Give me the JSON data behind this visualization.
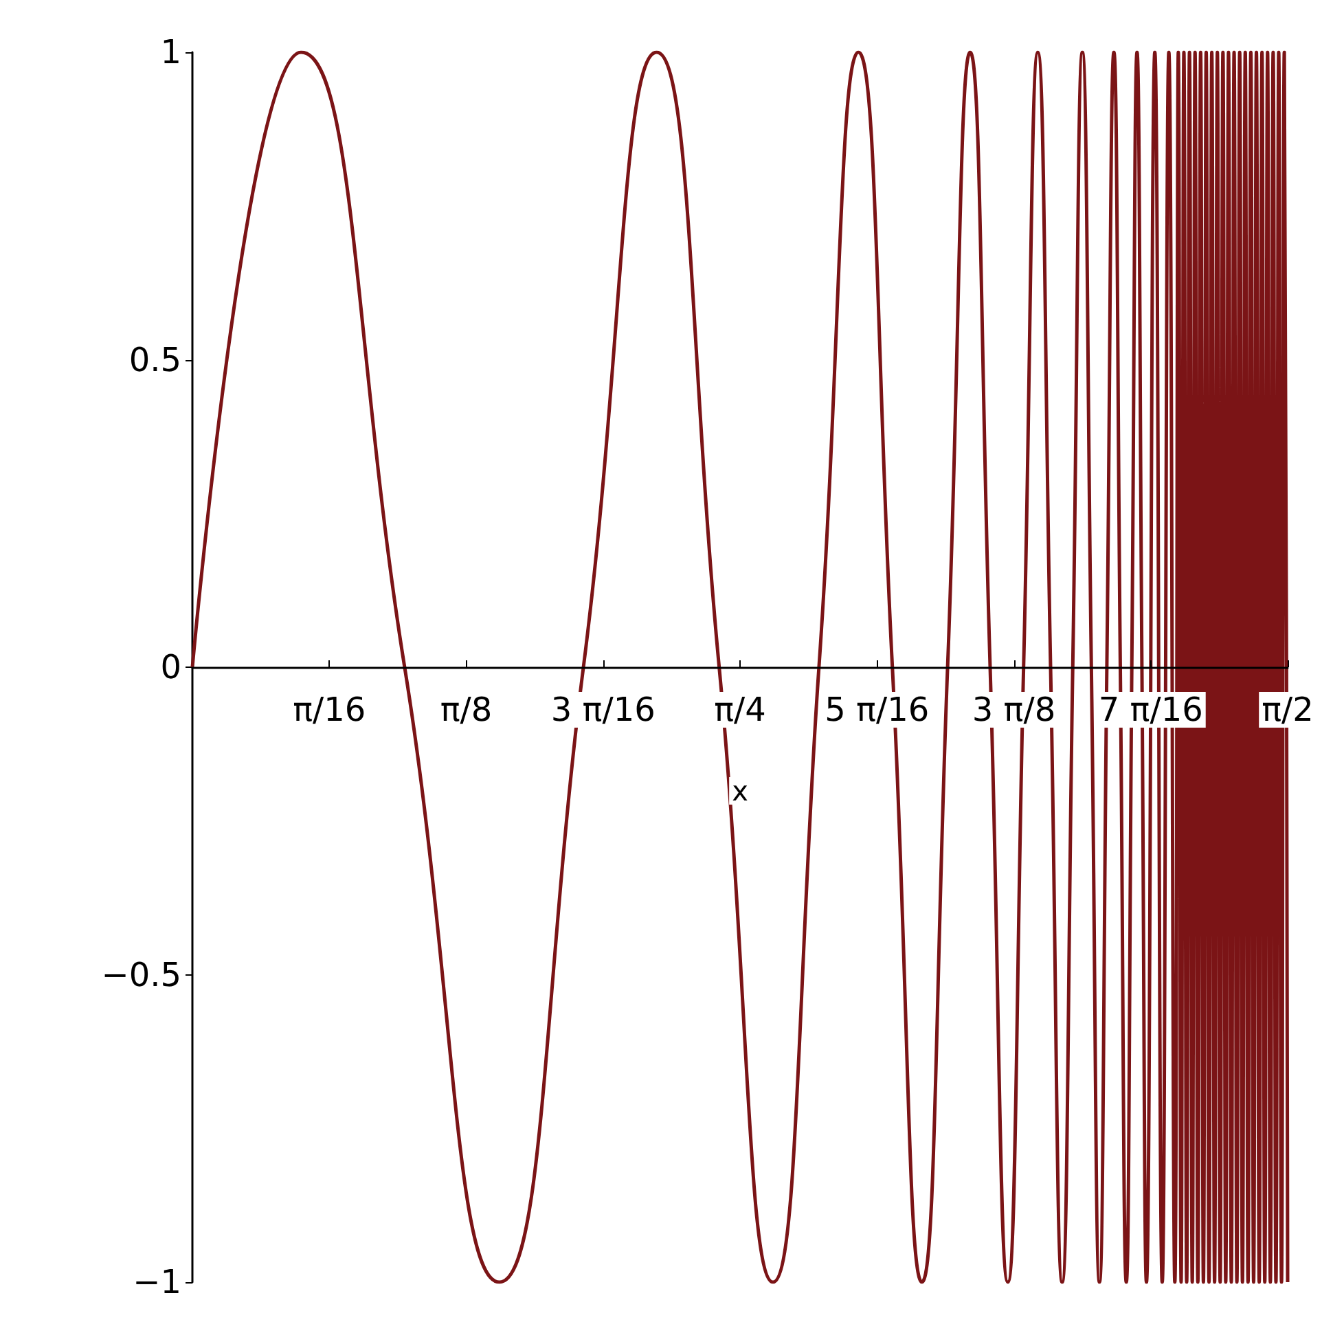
{
  "chart_data": {
    "type": "line",
    "xlabel": "x",
    "xlim": [
      0,
      1.5708
    ],
    "xticks": [
      {
        "value": 0.19635,
        "label": "π/16"
      },
      {
        "value": 0.3927,
        "label": "π/8"
      },
      {
        "value": 0.58905,
        "label": "3 π/16"
      },
      {
        "value": 0.7854,
        "label": "π/4"
      },
      {
        "value": 0.98175,
        "label": "5 π/16"
      },
      {
        "value": 1.1781,
        "label": "3 π/8"
      },
      {
        "value": 1.37445,
        "label": "7 π/16"
      },
      {
        "value": 1.5708,
        "label": "π/2"
      }
    ],
    "ylim": [
      -1,
      1
    ],
    "yticks": [
      {
        "value": -1,
        "label": "−1"
      },
      {
        "value": -0.5,
        "label": "−0.5"
      },
      0,
      0.5,
      1
    ],
    "grid": false,
    "marker": "none",
    "line_style": "solid",
    "series": [
      {
        "color": "#7b1416",
        "x": [
          0,
          0.1558,
          0.3044,
          0.4403,
          0.5608,
          0.6658,
          0.7555,
          0.8327,
          0.8986,
          0.9552,
          1.0039,
          1.0463,
          1.0831,
          1.1155,
          1.1441,
          1.1695,
          1.1921,
          1.2125,
          1.2308,
          1.2474,
          1.2626,
          1.2764,
          1.2893,
          1.3009,
          1.3115,
          1.3216,
          1.3308,
          1.3394,
          1.3473,
          1.3548,
          1.3618,
          1.3683,
          1.3803,
          1.3909,
          1.4004,
          1.409,
          1.414,
          1.418,
          1.422,
          1.426,
          1.43,
          1.434,
          1.438,
          1.442,
          1.446,
          1.45,
          1.454,
          1.458,
          1.462,
          1.466,
          1.47,
          1.474,
          1.478,
          1.482,
          1.486,
          1.49,
          1.494,
          1.498,
          1.502,
          1.506,
          1.51,
          1.514,
          1.518,
          1.522,
          1.526,
          1.53,
          1.534,
          1.538,
          1.542,
          1.546,
          1.55,
          1.554,
          1.558,
          1.562,
          1.566,
          1.5708
        ],
        "values": [
          0,
          1,
          0,
          -1,
          0,
          1,
          0,
          -1,
          0,
          1,
          0,
          -1,
          0,
          1,
          0,
          -1,
          0,
          1,
          0,
          -1,
          0,
          1,
          0,
          -1,
          0,
          1,
          0,
          -1,
          0,
          1,
          0,
          -1,
          1,
          -1,
          1,
          -1,
          1,
          -1,
          1,
          -1,
          1,
          -1,
          1,
          -1,
          1,
          -1,
          1,
          -1,
          1,
          -1,
          1,
          -1,
          1,
          -1,
          1,
          -1,
          1,
          -1,
          1,
          -1,
          1,
          -1,
          1,
          -1,
          1,
          -1,
          1,
          -1,
          1,
          -1,
          1,
          -1,
          1,
          -1,
          1,
          -1
        ]
      }
    ]
  }
}
